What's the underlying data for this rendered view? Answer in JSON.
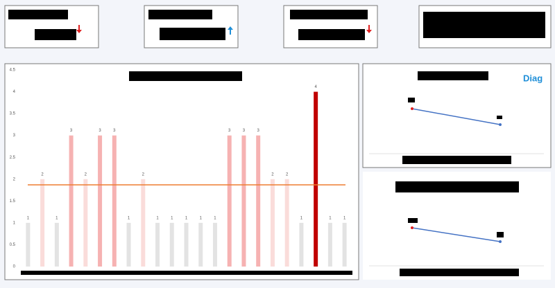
{
  "logo": "Diag",
  "chart_data": {
    "type": "bar",
    "categories": [
      null,
      null,
      null,
      null,
      null,
      null,
      null,
      null,
      null,
      null,
      null,
      null,
      null,
      null,
      null,
      null,
      null,
      null,
      null,
      null,
      null,
      null,
      null
    ],
    "values": [
      1,
      2,
      1,
      3,
      2,
      3,
      3,
      1,
      2,
      1,
      1,
      1,
      1,
      1,
      3,
      3,
      3,
      2,
      2,
      1,
      4,
      1,
      1
    ],
    "colors": [
      "#e3e3e3",
      "#fadcda",
      "#e3e3e3",
      "#f6b2b2",
      "#fadcda",
      "#f6b2b2",
      "#f6b2b2",
      "#e3e3e3",
      "#fadcda",
      "#e3e3e3",
      "#e3e3e3",
      "#e3e3e3",
      "#e3e3e3",
      "#e3e3e3",
      "#f6b2b2",
      "#f6b2b2",
      "#f6b2b2",
      "#fadcda",
      "#fadcda",
      "#e3e3e3",
      "#c00000",
      "#e3e3e3",
      "#e3e3e3"
    ],
    "ylim": [
      0,
      4.5
    ],
    "yticks": [
      0,
      0.5,
      1,
      1.5,
      2,
      2.5,
      3,
      3.5,
      4,
      4.5
    ],
    "reference_line": {
      "value": 1.87,
      "color": "#ed7d31"
    }
  }
}
